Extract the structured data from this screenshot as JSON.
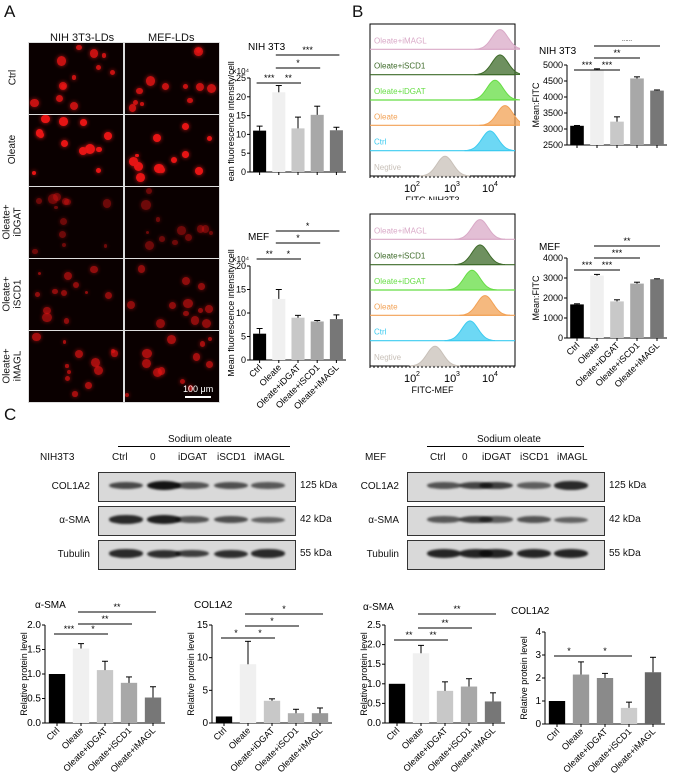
{
  "panels": {
    "A": "A",
    "B": "B",
    "C": "C"
  },
  "panel_a": {
    "col_headers": [
      "NIH 3T3-LDs",
      "MEF-LDs"
    ],
    "row_labels": [
      [
        "Ctrl"
      ],
      [
        "Oleate"
      ],
      [
        "Oleate+",
        "iDGAT"
      ],
      [
        "Oleate+",
        "iSCD1"
      ],
      [
        "Oleate+",
        "iMAGL"
      ]
    ],
    "scale_bar": "100 μm"
  },
  "panel_b": {
    "flow_nih": {
      "xlabel": "FITC-NIH3T3",
      "ticks": [
        "10^2",
        "10^3",
        "10^4"
      ],
      "tracks": [
        "Oleate+iMAGL",
        "Oleate+iSCD1",
        "Oleate+iDGAT",
        "Oleate",
        "Ctrl",
        "Negtive"
      ]
    },
    "flow_mef": {
      "xlabel": "FITC-MEF",
      "ticks": [
        "10^2",
        "10^3",
        "10^4"
      ],
      "tracks": [
        "Oleate+iMAGL",
        "Oleate+iSCD1",
        "Oleate+iDGAT",
        "Oleate",
        "Ctrl",
        "Negtive"
      ]
    },
    "track_colors": [
      "#d9a9c7",
      "#3e6b2a",
      "#66dd44",
      "#f2a154",
      "#3ccbf0",
      "#c8c0b8"
    ]
  },
  "panel_c": {
    "blot_nih": {
      "cell": "NIH3T3",
      "group": "Sodium oleate",
      "lanes": [
        "Ctrl",
        "0",
        "iDGAT",
        "iSCD1",
        "iMAGL"
      ],
      "rows": [
        "COL1A2",
        "α-SMA",
        "Tubulin"
      ],
      "kda": [
        "125 kDa",
        "42 kDa",
        "55 kDa"
      ]
    },
    "blot_mef": {
      "cell": "MEF",
      "group": "Sodium oleate",
      "lanes": [
        "Ctrl",
        "0",
        "iDGAT",
        "iSCD1",
        "iMAGL"
      ],
      "rows": [
        "COL1A2",
        "α-SMA",
        "Tubulin"
      ],
      "kda": [
        "125 kDa",
        "42 kDa",
        "55 kDa"
      ]
    }
  },
  "chart_data": [
    {
      "id": "A-NIH3T3",
      "type": "bar",
      "title": "NIH 3T3",
      "ylabel": "Mean fluorescence intensity/cell",
      "yscale_note": "×10⁴",
      "categories": [
        "Ctrl",
        "Oleate",
        "Oleate+iDGAT",
        "Oleate+iSCD1",
        "Oleate+iMAGL"
      ],
      "values": [
        11,
        21.2,
        11.6,
        15.2,
        11.1
      ],
      "errors": [
        1.2,
        1.8,
        3,
        2.3,
        0.8
      ],
      "ylim": [
        0,
        25
      ],
      "yticks": [
        0,
        5,
        10,
        15,
        20,
        25
      ],
      "significance": [
        [
          "Ctrl",
          "Oleate",
          "***"
        ],
        [
          "Oleate",
          "Oleate+iDGAT",
          "**"
        ],
        [
          "Oleate",
          "Oleate+iSCD1",
          "*"
        ],
        [
          "Oleate",
          "Oleate+iMAGL",
          "***"
        ]
      ]
    },
    {
      "id": "A-MEF",
      "type": "bar",
      "title": "MEF",
      "ylabel": "Mean fluorescence intensity/cell",
      "yscale_note": "×10⁴",
      "categories": [
        "Ctrl",
        "Oleate",
        "Oleate+iDGAT",
        "Oleate+iSCD1",
        "Oleate+iMAGL"
      ],
      "values": [
        5.6,
        13,
        9,
        8.2,
        8.7
      ],
      "errors": [
        1.1,
        2,
        0.5,
        0.2,
        0.9
      ],
      "ylim": [
        0,
        20
      ],
      "yticks": [
        0,
        5,
        10,
        15,
        20
      ],
      "significance": [
        [
          "Ctrl",
          "Oleate",
          "**"
        ],
        [
          "Oleate",
          "Oleate+iDGAT",
          "*"
        ],
        [
          "Oleate",
          "Oleate+iSCD1",
          "*"
        ],
        [
          "Oleate",
          "Oleate+iMAGL",
          "*"
        ]
      ]
    },
    {
      "id": "B-NIH3T3",
      "type": "bar",
      "title": "NIH 3T3",
      "ylabel": "Mean:FITC",
      "categories": [
        "Ctrl",
        "Oleate",
        "Oleate+iDGAT",
        "Oleate+iSCD1",
        "Oleate+iMAGL"
      ],
      "values": [
        3100,
        4830,
        3230,
        4580,
        4200
      ],
      "errors": [
        10,
        50,
        150,
        50,
        20
      ],
      "ylim": [
        2500,
        5000
      ],
      "yticks": [
        2500,
        3000,
        3500,
        4000,
        4500,
        5000
      ],
      "significance": [
        [
          "Ctrl",
          "Oleate",
          "***"
        ],
        [
          "Oleate",
          "Oleate+iDGAT",
          "***"
        ],
        [
          "Oleate",
          "Oleate+iSCD1",
          "**"
        ],
        [
          "Oleate",
          "Oleate+iMAGL",
          "***"
        ]
      ]
    },
    {
      "id": "B-MEF",
      "type": "bar",
      "title": "MEF",
      "ylabel": "Mean:FITC",
      "categories": [
        "Ctrl",
        "Oleate",
        "Oleate+iDGAT",
        "Oleate+iSCD1",
        "Oleate+iMAGL"
      ],
      "values": [
        1680,
        3120,
        1830,
        2720,
        2940
      ],
      "errors": [
        30,
        60,
        80,
        70,
        20
      ],
      "ylim": [
        0,
        4000
      ],
      "yticks": [
        0,
        1000,
        2000,
        3000,
        4000
      ],
      "significance": [
        [
          "Ctrl",
          "Oleate",
          "***"
        ],
        [
          "Oleate",
          "Oleate+iDGAT",
          "***"
        ],
        [
          "Oleate",
          "Oleate+iSCD1",
          "***"
        ],
        [
          "Oleate",
          "Oleate+iMAGL",
          "**"
        ]
      ]
    },
    {
      "id": "C-NIH-aSMA",
      "type": "bar",
      "title": "α-SMA",
      "ylabel": "Relative protein level",
      "categories": [
        "Ctrl",
        "Oleate",
        "Oleate+iDGAT",
        "Oleate+iSCD1",
        "Oleate+iMAGL"
      ],
      "values": [
        1.0,
        1.52,
        1.08,
        0.82,
        0.52
      ],
      "errors": [
        0,
        0.1,
        0.18,
        0.12,
        0.22
      ],
      "ylim": [
        0,
        2
      ],
      "yticks": [
        0.0,
        0.5,
        1.0,
        1.5,
        2.0
      ],
      "significance": [
        [
          "Ctrl",
          "Oleate",
          "***"
        ],
        [
          "Oleate",
          "Oleate+iDGAT",
          "*"
        ],
        [
          "Oleate",
          "Oleate+iSCD1",
          "**"
        ],
        [
          "Oleate",
          "Oleate+iMAGL",
          "**"
        ]
      ]
    },
    {
      "id": "C-NIH-COL1A2",
      "type": "bar",
      "title": "COL1A2",
      "ylabel": "Relative protein level",
      "categories": [
        "Ctrl",
        "Oleate",
        "Oleate+iDGAT",
        "Oleate+iSCD1",
        "Oleate+iMAGL"
      ],
      "values": [
        1.0,
        9.0,
        3.4,
        1.5,
        1.5
      ],
      "errors": [
        0,
        3.5,
        0.3,
        0.6,
        0.8
      ],
      "ylim": [
        0,
        15
      ],
      "yticks": [
        0,
        5,
        10,
        15
      ],
      "significance": [
        [
          "Ctrl",
          "Oleate",
          "*"
        ],
        [
          "Oleate",
          "Oleate+iDGAT",
          "*"
        ],
        [
          "Oleate",
          "Oleate+iSCD1",
          "*"
        ],
        [
          "Oleate",
          "Oleate+iMAGL",
          "*"
        ]
      ]
    },
    {
      "id": "C-MEF-aSMA",
      "type": "bar",
      "title": "α-SMA",
      "ylabel": "Relative protein level",
      "categories": [
        "Ctrl",
        "Oleate",
        "Oleate+iDGAT",
        "Oleate+iSCD1",
        "Oleate+iMAGL"
      ],
      "values": [
        1.0,
        1.78,
        0.82,
        0.93,
        0.55
      ],
      "errors": [
        0,
        0.2,
        0.23,
        0.2,
        0.22
      ],
      "ylim": [
        0,
        2.5
      ],
      "yticks": [
        0.0,
        0.5,
        1.0,
        1.5,
        2.0,
        2.5
      ],
      "significance": [
        [
          "Ctrl",
          "Oleate",
          "**"
        ],
        [
          "Oleate",
          "Oleate+iDGAT",
          "**"
        ],
        [
          "Oleate",
          "Oleate+iSCD1",
          "**"
        ],
        [
          "Oleate",
          "Oleate+iMAGL",
          "**"
        ]
      ]
    },
    {
      "id": "C-MEF-COL1A2",
      "type": "bar",
      "title": "COL1A2",
      "ylabel": "Relative protein level",
      "categories": [
        "Ctrl",
        "Oleate",
        "Oleate+iDGAT",
        "Oleate+iSCD1",
        "Oleate+iMAGL"
      ],
      "values": [
        1.0,
        2.15,
        2.0,
        0.7,
        2.25
      ],
      "errors": [
        0,
        0.55,
        0.2,
        0.25,
        0.65
      ],
      "ylim": [
        0,
        4
      ],
      "yticks": [
        0,
        1,
        2,
        3,
        4
      ],
      "significance": [
        [
          "Ctrl",
          "Oleate",
          "*"
        ],
        [
          "Oleate",
          "Oleate+iSCD1",
          "*"
        ]
      ]
    }
  ]
}
